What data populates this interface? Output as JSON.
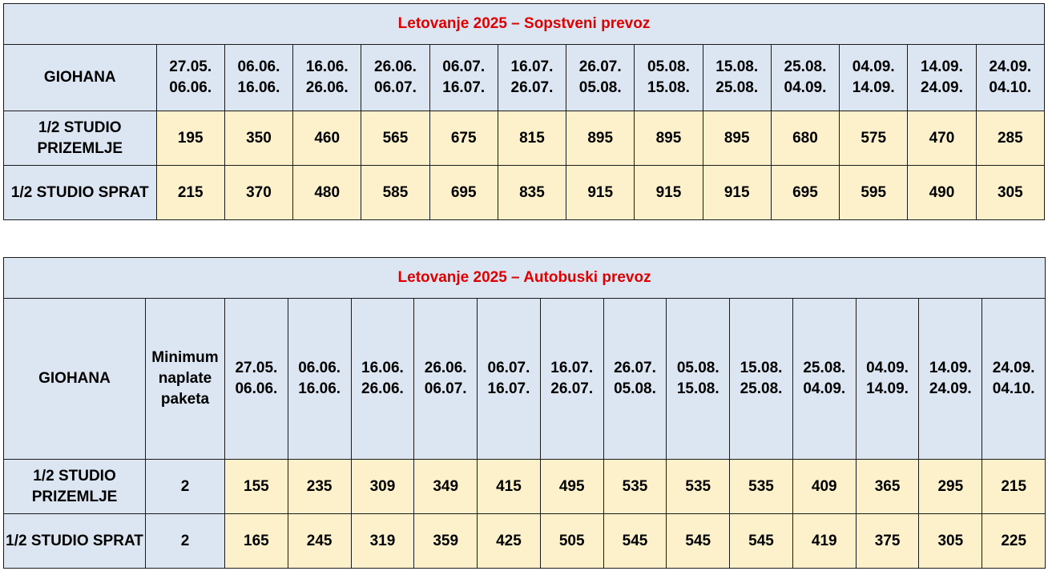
{
  "table1": {
    "title": "Letovanje 2025 – Sopstveni prevoz",
    "corner": "GIOHANA",
    "periods": [
      "27.05.\n06.06.",
      "06.06.\n16.06.",
      "16.06.\n26.06.",
      "26.06.\n06.07.",
      "06.07.\n16.07.",
      "16.07.\n26.07.",
      "26.07.\n05.08.",
      "05.08.\n15.08.",
      "15.08.\n25.08.",
      "25.08.\n04.09.",
      "04.09.\n14.09.",
      "14.09.\n24.09.",
      "24.09.\n04.10."
    ],
    "rows": [
      {
        "label": "1/2 STUDIO\nPRIZEMLJE",
        "prices": [
          "195",
          "350",
          "460",
          "565",
          "675",
          "815",
          "895",
          "895",
          "895",
          "680",
          "575",
          "470",
          "285"
        ]
      },
      {
        "label": "1/2 STUDIO SPRAT",
        "prices": [
          "215",
          "370",
          "480",
          "585",
          "695",
          "835",
          "915",
          "915",
          "915",
          "695",
          "595",
          "490",
          "305"
        ]
      }
    ]
  },
  "table2": {
    "title": "Letovanje 2025 – Autobuski prevoz",
    "corner": "GIOHANA",
    "min_header": "Minimum\nnaplate\npaketa",
    "periods": [
      "27.05.\n06.06.",
      "06.06.\n16.06.",
      "16.06.\n26.06.",
      "26.06.\n06.07.",
      "06.07.\n16.07.",
      "16.07.\n26.07.",
      "26.07.\n05.08.",
      "05.08.\n15.08.",
      "15.08.\n25.08.",
      "25.08.\n04.09.",
      "04.09.\n14.09.",
      "14.09.\n24.09.",
      "24.09.\n04.10."
    ],
    "rows": [
      {
        "label": "1/2 STUDIO\nPRIZEMLJE",
        "min": "2",
        "prices": [
          "155",
          "235",
          "309",
          "349",
          "415",
          "495",
          "535",
          "535",
          "535",
          "409",
          "365",
          "295",
          "215"
        ]
      },
      {
        "label": "1/2 STUDIO SPRAT",
        "min": "2",
        "prices": [
          "165",
          "245",
          "319",
          "359",
          "425",
          "505",
          "545",
          "545",
          "545",
          "419",
          "375",
          "305",
          "225"
        ]
      }
    ]
  },
  "colors": {
    "title_text": "#e00000",
    "header_bg": "#dce6f2",
    "price_bg": "#fdf1cc"
  }
}
